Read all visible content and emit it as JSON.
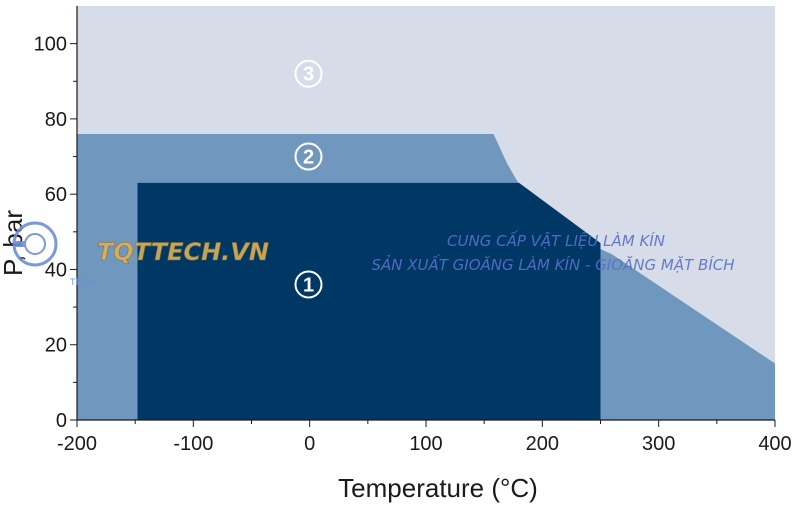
{
  "chart_data": {
    "type": "area",
    "title": "",
    "xlabel": "Temperature (°C)",
    "ylabel": "P, bar",
    "xlim": [
      -200,
      400
    ],
    "ylim": [
      0,
      110
    ],
    "x_ticks": [
      -200,
      -100,
      0,
      100,
      200,
      300,
      400
    ],
    "x_tick_labels": [
      "-200",
      "-100",
      "0",
      "100",
      "200",
      "300",
      "400"
    ],
    "y_ticks": [
      0,
      20,
      40,
      60,
      80,
      100
    ],
    "y_tick_labels": [
      "0",
      "20",
      "40",
      "60",
      "80",
      "100"
    ],
    "grid": false,
    "zones": [
      {
        "label": "1",
        "color": "#003865",
        "boundary": [
          [
            -148,
            0
          ],
          [
            -148,
            63
          ],
          [
            180,
            63
          ],
          [
            250,
            47
          ],
          [
            250,
            0
          ]
        ]
      },
      {
        "label": "2",
        "color": "#7097bd",
        "boundary": [
          [
            -200,
            0
          ],
          [
            -200,
            76
          ],
          [
            158,
            76
          ],
          [
            170,
            68
          ],
          [
            185,
            60
          ],
          [
            200,
            55
          ],
          [
            225,
            49
          ],
          [
            260,
            44
          ],
          [
            400,
            15
          ],
          [
            400,
            0
          ]
        ]
      },
      {
        "label": "3",
        "color": "#d6dde9",
        "boundary": [
          [
            -200,
            0
          ],
          [
            -200,
            110
          ],
          [
            400,
            110
          ],
          [
            400,
            0
          ]
        ]
      }
    ]
  },
  "watermark": {
    "brand": "TQTTECH.VN",
    "line1": "CUNG CẤP VẬT LIỆU LÀM KÍN",
    "line2": "SẢN XUẤT GIOĂNG LÀM KÍN - GIOĂNG MẶT BÍCH",
    "logo_text": "TECH"
  }
}
